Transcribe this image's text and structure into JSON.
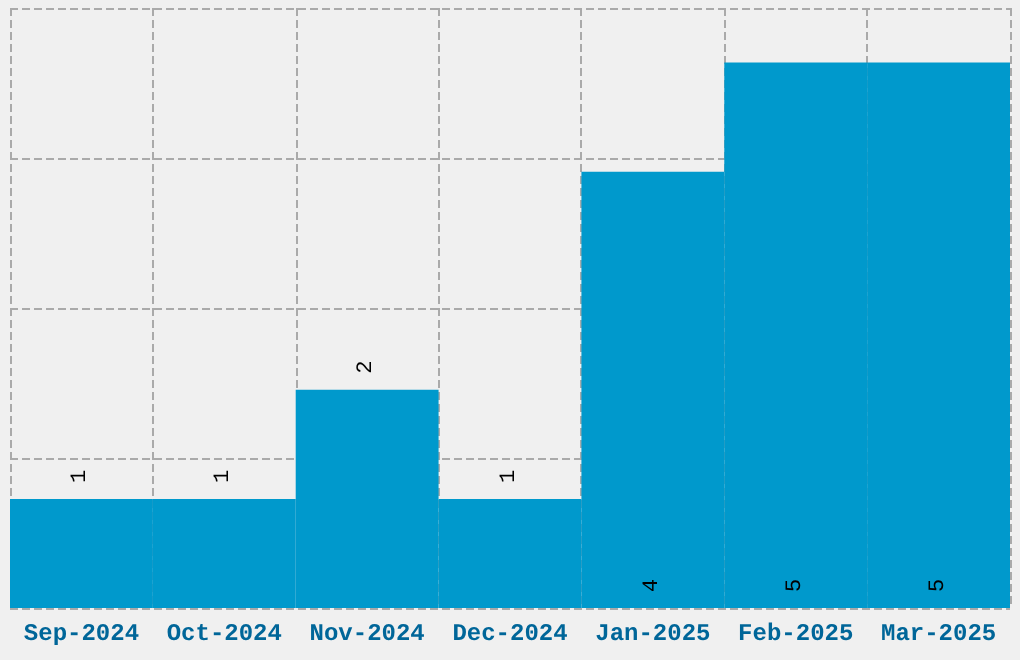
{
  "chart_data": {
    "type": "bar",
    "categories": [
      "Sep-2024",
      "Oct-2024",
      "Nov-2024",
      "Dec-2024",
      "Jan-2025",
      "Feb-2025",
      "Mar-2025"
    ],
    "values": [
      1,
      1,
      2,
      1,
      4,
      5,
      5
    ],
    "color": "#0099cc",
    "ylim": [
      0,
      5.5
    ],
    "yticks": [
      {
        "value": 0,
        "label": null
      },
      {
        "value": 1.375,
        "label": null
      },
      {
        "value": 2.75,
        "label": null
      },
      {
        "value": 4.125,
        "label": null
      },
      {
        "value": 5.5,
        "label": null
      }
    ],
    "tick_labels": "x",
    "grid": true,
    "data_labels": true
  }
}
